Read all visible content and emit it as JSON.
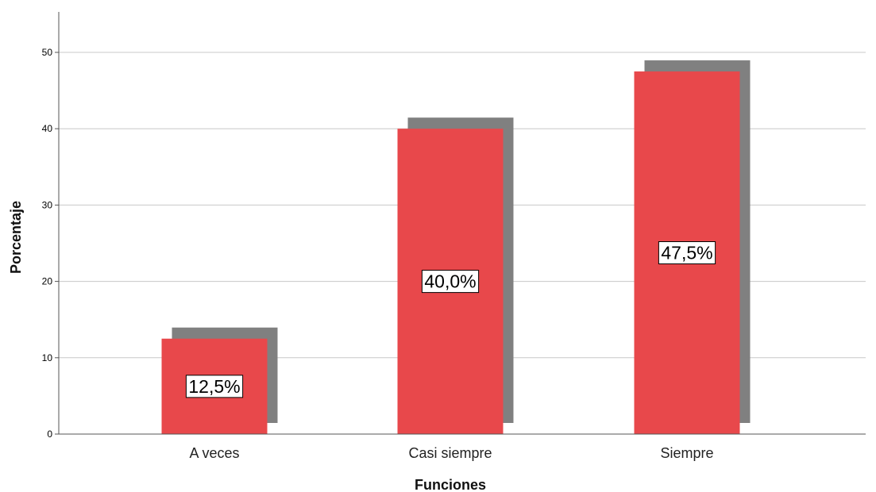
{
  "chart_data": {
    "type": "bar",
    "categories": [
      "A veces",
      "Casi siempre",
      "Siempre"
    ],
    "values": [
      12.5,
      40.0,
      47.5
    ],
    "data_labels": [
      "12,5%",
      "40,0%",
      "47,5%"
    ],
    "xlabel": "Funciones",
    "ylabel": "Porcentaje",
    "ylim": [
      0,
      55
    ],
    "yticks": [
      0,
      10,
      20,
      30,
      40,
      50
    ],
    "grid": true,
    "legend": "none",
    "bar_style": "3d-drop-shadow",
    "colors": {
      "bar": "#e8484b",
      "shadow": "#808080",
      "grid": "#c8c8c8",
      "axis": "#555555",
      "label_box_fill": "#ffffff",
      "label_box_stroke": "#000000"
    }
  }
}
